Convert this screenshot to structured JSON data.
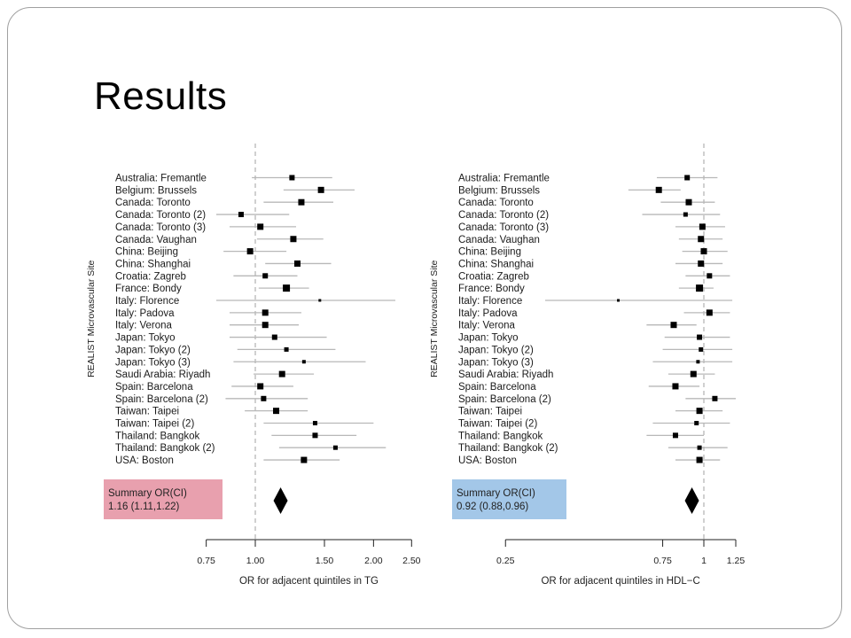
{
  "slide": {
    "title": "Results"
  },
  "colors": {
    "ci_line": "#b8b8b8",
    "marker": "#000000",
    "ref_line": "#c4c4c4",
    "summary_box_left": "#e8a0ae",
    "summary_box_right": "#a3c7e8"
  },
  "chart_data": [
    {
      "type": "forest",
      "ylabel": "REALIST Microvascular Site",
      "xlabel": "OR for adjacent quintiles in TG",
      "scale": "log",
      "xlim": [
        0.75,
        2.5
      ],
      "xticks": [
        0.75,
        1.0,
        1.5,
        2.0,
        2.5
      ],
      "xtick_labels": [
        "0.75",
        "1.00",
        "1.50",
        "2.00",
        "2.50"
      ],
      "reference": 1.0,
      "summary": {
        "label": "Summary OR(CI)",
        "text": "1.16 (1.11,1.22)",
        "or": 1.16,
        "lo": 1.11,
        "hi": 1.22
      },
      "sites": [
        {
          "name": "Australia: Fremantle",
          "or": 1.24,
          "lo": 0.98,
          "hi": 1.57,
          "w": 3
        },
        {
          "name": "Belgium: Brussels",
          "or": 1.47,
          "lo": 1.18,
          "hi": 1.79,
          "w": 3.5
        },
        {
          "name": "Canada: Toronto",
          "or": 1.31,
          "lo": 1.05,
          "hi": 1.58,
          "w": 3.5
        },
        {
          "name": "Canada: Toronto (2)",
          "or": 0.92,
          "lo": 0.76,
          "hi": 1.22,
          "w": 3
        },
        {
          "name": "Canada: Toronto (3)",
          "or": 1.03,
          "lo": 0.86,
          "hi": 1.27,
          "w": 3.5
        },
        {
          "name": "Canada: Vaughan",
          "or": 1.25,
          "lo": 1.01,
          "hi": 1.49,
          "w": 3.5
        },
        {
          "name": "China: Beijing",
          "or": 0.97,
          "lo": 0.83,
          "hi": 1.2,
          "w": 3.5
        },
        {
          "name": "China: Shanghai",
          "or": 1.28,
          "lo": 1.06,
          "hi": 1.56,
          "w": 3.5
        },
        {
          "name": "Croatia: Zagreb",
          "or": 1.06,
          "lo": 0.88,
          "hi": 1.28,
          "w": 3
        },
        {
          "name": "France: Bondy",
          "or": 1.2,
          "lo": 1.02,
          "hi": 1.37,
          "w": 4
        },
        {
          "name": "Italy: Florence",
          "or": 1.46,
          "lo": 0.78,
          "hi": 2.75,
          "w": 1.5
        },
        {
          "name": "Italy: Padova",
          "or": 1.06,
          "lo": 0.86,
          "hi": 1.31,
          "w": 3.5
        },
        {
          "name": "Italy: Verona",
          "or": 1.06,
          "lo": 0.86,
          "hi": 1.29,
          "w": 3.5
        },
        {
          "name": "Japan: Tokyo",
          "or": 1.12,
          "lo": 0.86,
          "hi": 1.52,
          "w": 3
        },
        {
          "name": "Japan: Tokyo (2)",
          "or": 1.2,
          "lo": 0.9,
          "hi": 1.6,
          "w": 2.5
        },
        {
          "name": "Japan: Tokyo (3)",
          "or": 1.33,
          "lo": 0.88,
          "hi": 1.91,
          "w": 2
        },
        {
          "name": "Saudi Arabia: Riyadh",
          "or": 1.17,
          "lo": 0.99,
          "hi": 1.41,
          "w": 3.5
        },
        {
          "name": "Spain: Barcelona",
          "or": 1.03,
          "lo": 0.87,
          "hi": 1.25,
          "w": 3.5
        },
        {
          "name": "Spain: Barcelona (2)",
          "or": 1.05,
          "lo": 0.84,
          "hi": 1.36,
          "w": 3
        },
        {
          "name": "Taiwan: Taipei",
          "or": 1.13,
          "lo": 0.94,
          "hi": 1.36,
          "w": 3.5
        },
        {
          "name": "Taiwan: Taipei (2)",
          "or": 1.42,
          "lo": 1.05,
          "hi": 2.0,
          "w": 2.5
        },
        {
          "name": "Thailand: Bangkok",
          "or": 1.42,
          "lo": 1.1,
          "hi": 1.81,
          "w": 3
        },
        {
          "name": "Thailand: Bangkok (2)",
          "or": 1.6,
          "lo": 1.15,
          "hi": 2.15,
          "w": 2.5
        },
        {
          "name": "USA: Boston",
          "or": 1.33,
          "lo": 1.05,
          "hi": 1.64,
          "w": 3.5
        }
      ]
    },
    {
      "type": "forest",
      "ylabel": "REALIST Microvascular Site",
      "xlabel": "OR for adjacent quintiles in HDL−C",
      "scale": "log",
      "xlim": [
        0.25,
        1.25
      ],
      "xticks": [
        0.25,
        0.75,
        1.0,
        1.25
      ],
      "xtick_labels": [
        "0.25",
        "0.75",
        "1",
        "1.25"
      ],
      "reference": 1.0,
      "summary": {
        "label": "Summary OR(CI)",
        "text": "0.92 (0.88,0.96)",
        "or": 0.92,
        "lo": 0.88,
        "hi": 0.96
      },
      "sites": [
        {
          "name": "Australia: Fremantle",
          "or": 0.89,
          "lo": 0.72,
          "hi": 1.1,
          "w": 3
        },
        {
          "name": "Belgium: Brussels",
          "or": 0.73,
          "lo": 0.59,
          "hi": 0.85,
          "w": 3.5
        },
        {
          "name": "Canada: Toronto",
          "or": 0.9,
          "lo": 0.74,
          "hi": 1.08,
          "w": 3.5
        },
        {
          "name": "Canada: Toronto (2)",
          "or": 0.88,
          "lo": 0.65,
          "hi": 1.12,
          "w": 2.5
        },
        {
          "name": "Canada: Toronto (3)",
          "or": 0.99,
          "lo": 0.82,
          "hi": 1.16,
          "w": 3.5
        },
        {
          "name": "Canada: Vaughan",
          "or": 0.98,
          "lo": 0.84,
          "hi": 1.14,
          "w": 3.5
        },
        {
          "name": "China: Beijing",
          "or": 1.0,
          "lo": 0.86,
          "hi": 1.18,
          "w": 3.5
        },
        {
          "name": "China: Shanghai",
          "or": 0.98,
          "lo": 0.82,
          "hi": 1.14,
          "w": 3.5
        },
        {
          "name": "Croatia: Zagreb",
          "or": 1.04,
          "lo": 0.88,
          "hi": 1.2,
          "w": 3
        },
        {
          "name": "France: Bondy",
          "or": 0.97,
          "lo": 0.84,
          "hi": 1.07,
          "w": 4
        },
        {
          "name": "Italy: Florence",
          "or": 0.55,
          "lo": 0.27,
          "hi": 1.22,
          "w": 1.5
        },
        {
          "name": "Italy: Padova",
          "or": 1.04,
          "lo": 0.87,
          "hi": 1.2,
          "w": 3.5
        },
        {
          "name": "Italy: Verona",
          "or": 0.81,
          "lo": 0.67,
          "hi": 0.95,
          "w": 3.5
        },
        {
          "name": "Japan: Tokyo",
          "or": 0.97,
          "lo": 0.76,
          "hi": 1.2,
          "w": 3
        },
        {
          "name": "Japan: Tokyo (2)",
          "or": 0.98,
          "lo": 0.75,
          "hi": 1.22,
          "w": 2.5
        },
        {
          "name": "Japan: Tokyo (3)",
          "or": 0.96,
          "lo": 0.7,
          "hi": 1.22,
          "w": 2
        },
        {
          "name": "Saudi Arabia: Riyadh",
          "or": 0.93,
          "lo": 0.78,
          "hi": 1.08,
          "w": 3.5
        },
        {
          "name": "Spain: Barcelona",
          "or": 0.82,
          "lo": 0.68,
          "hi": 0.97,
          "w": 3.5
        },
        {
          "name": "Spain: Barcelona (2)",
          "or": 1.08,
          "lo": 0.88,
          "hi": 1.25,
          "w": 3
        },
        {
          "name": "Taiwan: Taipei",
          "or": 0.97,
          "lo": 0.82,
          "hi": 1.14,
          "w": 3.5
        },
        {
          "name": "Taiwan: Taipei (2)",
          "or": 0.95,
          "lo": 0.7,
          "hi": 1.2,
          "w": 2.5
        },
        {
          "name": "Thailand: Bangkok",
          "or": 0.82,
          "lo": 0.67,
          "hi": 1.0,
          "w": 3
        },
        {
          "name": "Thailand: Bangkok (2)",
          "or": 0.97,
          "lo": 0.78,
          "hi": 1.18,
          "w": 2.5
        },
        {
          "name": "USA: Boston",
          "or": 0.97,
          "lo": 0.82,
          "hi": 1.12,
          "w": 3.5
        }
      ]
    }
  ]
}
